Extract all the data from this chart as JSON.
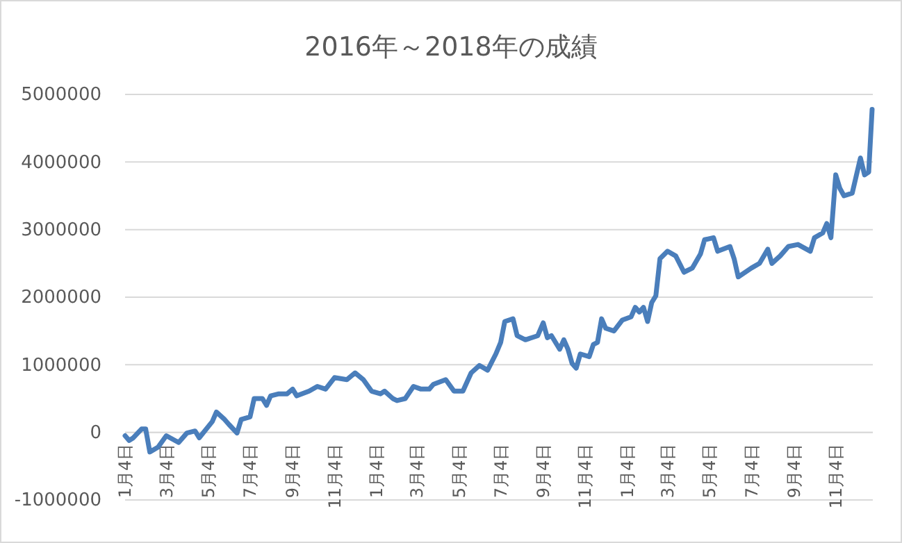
{
  "chart_data": {
    "type": "line",
    "title": "2016年～2018年の成績",
    "x": [
      "2016-01-04",
      "2016-01-10",
      "2016-01-16",
      "2016-01-28",
      "2016-02-03",
      "2016-02-09",
      "2016-02-21",
      "2016-03-04",
      "2016-03-22",
      "2016-04-03",
      "2016-04-15",
      "2016-04-21",
      "2016-05-10",
      "2016-05-16",
      "2016-05-28",
      "2016-06-03",
      "2016-06-15",
      "2016-06-21",
      "2016-07-04",
      "2016-07-10",
      "2016-07-22",
      "2016-07-28",
      "2016-08-03",
      "2016-08-15",
      "2016-08-27",
      "2016-09-04",
      "2016-09-10",
      "2016-09-28",
      "2016-10-10",
      "2016-10-22",
      "2016-11-04",
      "2016-11-22",
      "2016-12-04",
      "2016-12-16",
      "2016-12-28",
      "2017-01-10",
      "2017-01-16",
      "2017-01-28",
      "2017-02-03",
      "2017-02-15",
      "2017-02-27",
      "2017-03-10",
      "2017-03-22",
      "2017-03-28",
      "2017-04-15",
      "2017-04-27",
      "2017-05-10",
      "2017-05-22",
      "2017-06-03",
      "2017-06-15",
      "2017-06-27",
      "2017-07-04",
      "2017-07-10",
      "2017-07-22",
      "2017-07-28",
      "2017-08-09",
      "2017-08-27",
      "2017-09-04",
      "2017-09-10",
      "2017-09-16",
      "2017-09-28",
      "2017-10-04",
      "2017-10-10",
      "2017-10-16",
      "2017-10-22",
      "2017-10-28",
      "2017-11-10",
      "2017-11-16",
      "2017-11-22",
      "2017-11-28",
      "2017-12-04",
      "2017-12-16",
      "2017-12-28",
      "2018-01-10",
      "2018-01-16",
      "2018-01-22",
      "2018-01-28",
      "2018-02-03",
      "2018-02-09",
      "2018-02-15",
      "2018-02-21",
      "2018-03-04",
      "2018-03-16",
      "2018-03-28",
      "2018-04-09",
      "2018-04-21",
      "2018-04-27",
      "2018-05-10",
      "2018-05-16",
      "2018-06-03",
      "2018-06-09",
      "2018-06-15",
      "2018-07-04",
      "2018-07-16",
      "2018-07-28",
      "2018-08-03",
      "2018-08-15",
      "2018-08-27",
      "2018-09-10",
      "2018-09-28",
      "2018-10-04",
      "2018-10-16",
      "2018-10-22",
      "2018-10-28",
      "2018-11-04",
      "2018-11-10",
      "2018-11-16",
      "2018-11-28",
      "2018-12-10",
      "2018-12-16",
      "2018-12-22",
      "2018-12-27"
    ],
    "series": [
      {
        "color": "#4a7ebb",
        "values": [
          -50000,
          -120000,
          -80000,
          50000,
          50000,
          -290000,
          -220000,
          -50000,
          -150000,
          -10000,
          20000,
          -80000,
          160000,
          300000,
          190000,
          120000,
          -10000,
          190000,
          230000,
          500000,
          500000,
          400000,
          540000,
          570000,
          570000,
          640000,
          540000,
          610000,
          680000,
          640000,
          810000,
          780000,
          880000,
          780000,
          610000,
          570000,
          610000,
          500000,
          470000,
          500000,
          680000,
          640000,
          640000,
          710000,
          780000,
          610000,
          610000,
          880000,
          990000,
          920000,
          1160000,
          1330000,
          1640000,
          1680000,
          1430000,
          1370000,
          1430000,
          1620000,
          1400000,
          1430000,
          1230000,
          1370000,
          1230000,
          1020000,
          950000,
          1160000,
          1120000,
          1300000,
          1330000,
          1680000,
          1540000,
          1500000,
          1660000,
          1710000,
          1850000,
          1780000,
          1850000,
          1640000,
          1920000,
          2020000,
          2570000,
          2680000,
          2610000,
          2370000,
          2430000,
          2640000,
          2850000,
          2880000,
          2680000,
          2750000,
          2570000,
          2300000,
          2430000,
          2500000,
          2710000,
          2500000,
          2610000,
          2750000,
          2780000,
          2680000,
          2880000,
          2950000,
          3090000,
          2880000,
          3810000,
          3610000,
          3500000,
          3540000,
          4060000,
          3810000,
          3850000,
          4780000
        ]
      }
    ],
    "xlim": [
      "2016-01-04",
      "2018-12-28"
    ],
    "xticks": [
      {
        "value": "2016-01-04",
        "label": "1月4日"
      },
      {
        "value": "2016-03-04",
        "label": "3月4日"
      },
      {
        "value": "2016-05-04",
        "label": "5月4日"
      },
      {
        "value": "2016-07-04",
        "label": "7月4日"
      },
      {
        "value": "2016-09-04",
        "label": "9月4日"
      },
      {
        "value": "2016-11-04",
        "label": "11月4日"
      },
      {
        "value": "2017-01-04",
        "label": "1月4日"
      },
      {
        "value": "2017-03-04",
        "label": "3月4日"
      },
      {
        "value": "2017-05-04",
        "label": "5月4日"
      },
      {
        "value": "2017-07-04",
        "label": "7月4日"
      },
      {
        "value": "2017-09-04",
        "label": "9月4日"
      },
      {
        "value": "2017-11-04",
        "label": "11月4日"
      },
      {
        "value": "2018-01-04",
        "label": "1月4日"
      },
      {
        "value": "2018-03-04",
        "label": "3月4日"
      },
      {
        "value": "2018-05-04",
        "label": "5月4日"
      },
      {
        "value": "2018-07-04",
        "label": "7月4日"
      },
      {
        "value": "2018-09-04",
        "label": "9月4日"
      },
      {
        "value": "2018-11-04",
        "label": "11月4日"
      }
    ],
    "ylim": [
      -1000000,
      5000000
    ],
    "yticks": [
      -1000000,
      0,
      1000000,
      2000000,
      3000000,
      4000000,
      5000000
    ],
    "grid": "y",
    "marker": "none",
    "line_style": "solid"
  }
}
